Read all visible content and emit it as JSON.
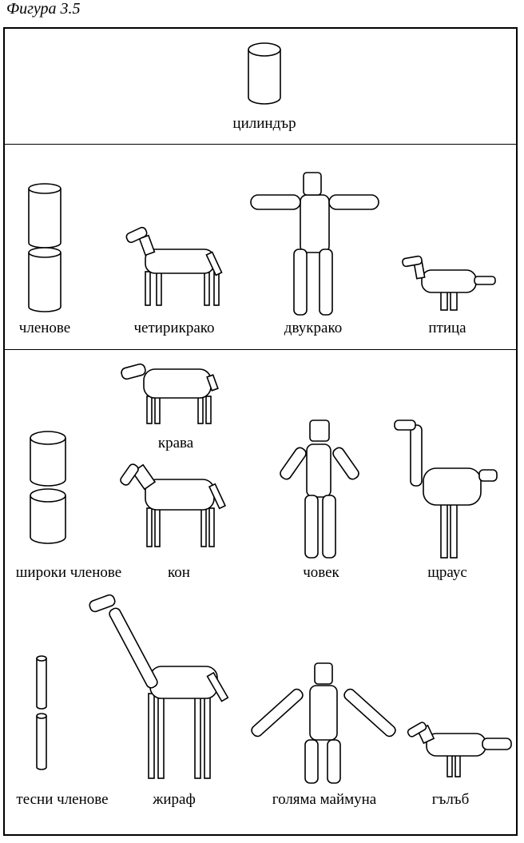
{
  "figure_caption": "Фигура 3.5",
  "sections": {
    "top": {
      "label": "цилиндър"
    },
    "middle": {
      "labels": [
        "членове",
        "четирикрако",
        "двукрако",
        "птица"
      ]
    },
    "bottom": {
      "labels": [
        "крава",
        "широки членове",
        "кон",
        "човек",
        "щраус",
        "тесни членове",
        "жираф",
        "голяма маймуна",
        "гълъб"
      ]
    }
  }
}
